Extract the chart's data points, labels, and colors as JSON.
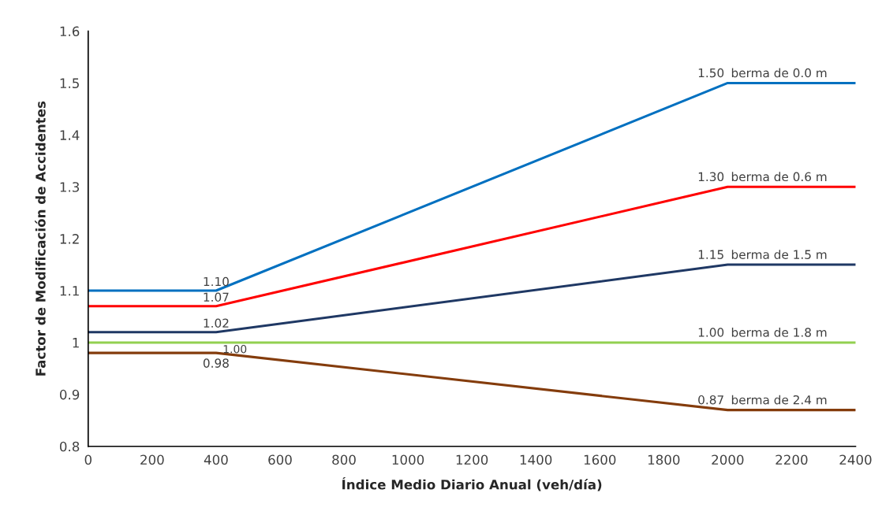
{
  "chart_data": {
    "type": "line",
    "xlabel": "Índice Medio Diario Anual (veh/día)",
    "ylabel": "Factor de Modificación de Accidentes",
    "x": [
      0,
      400,
      2000,
      2400
    ],
    "xlim": [
      0,
      2400
    ],
    "xticks": [
      0,
      200,
      400,
      600,
      800,
      1000,
      1200,
      1400,
      1600,
      1800,
      2000,
      2200,
      2400
    ],
    "ylim": [
      0.8,
      1.6
    ],
    "yticks": [
      0.8,
      0.9,
      1,
      1.1,
      1.2,
      1.3,
      1.4,
      1.5,
      1.6
    ],
    "grid": false,
    "legend": false,
    "marker": "none",
    "line_style": "solid",
    "series": [
      {
        "name": "berma de 0.0 m",
        "color": "#0070c0",
        "values": [
          1.1,
          1.1,
          1.5,
          1.5
        ],
        "value_labels": [
          null,
          "1.10",
          "1.50",
          null
        ]
      },
      {
        "name": "berma de 0.6 m",
        "color": "#ff0000",
        "values": [
          1.07,
          1.07,
          1.3,
          1.3
        ],
        "value_labels": [
          null,
          "1.07",
          "1.30",
          null
        ]
      },
      {
        "name": "berma de 1.5 m",
        "color": "#1f3864",
        "values": [
          1.02,
          1.02,
          1.15,
          1.15
        ],
        "value_labels": [
          null,
          "1.02",
          "1.15",
          null
        ]
      },
      {
        "name": "berma de 1.8 m",
        "color": "#92d050",
        "values": [
          1,
          1,
          1,
          1
        ],
        "value_labels": [
          null,
          "1.00",
          "1.00",
          null
        ]
      },
      {
        "name": "berma de 2.4 m",
        "color": "#843c0c",
        "values": [
          0.98,
          0.98,
          0.87,
          0.87
        ],
        "value_labels": [
          null,
          "0.98",
          "0.87",
          null
        ]
      }
    ]
  }
}
